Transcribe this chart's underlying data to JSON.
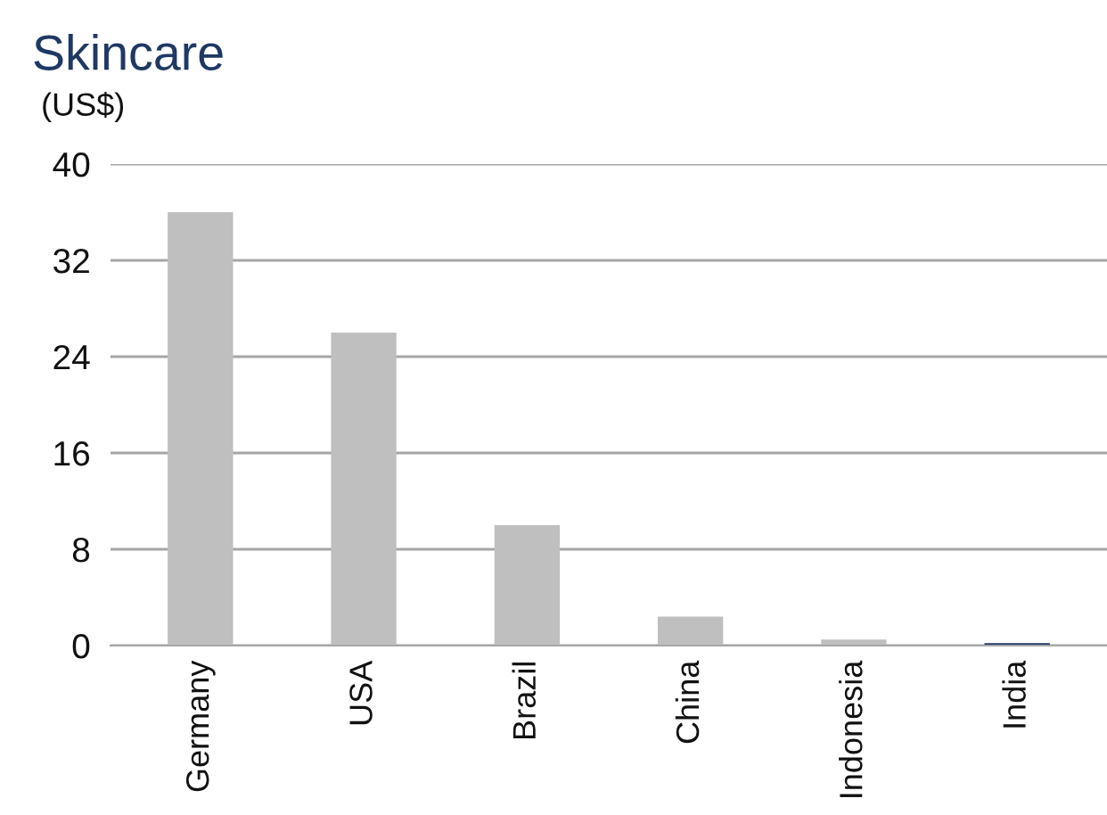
{
  "chart_data": {
    "type": "bar",
    "title": "Skincare",
    "ylabel": "(US$)",
    "categories": [
      "Germany",
      "USA",
      "Brazil",
      "China",
      "Indonesia",
      "India"
    ],
    "values": [
      36,
      26,
      10,
      2.4,
      0.5,
      0.2
    ],
    "colors": [
      "#bfbfbf",
      "#bfbfbf",
      "#bfbfbf",
      "#bfbfbf",
      "#bfbfbf",
      "#1f3864"
    ],
    "ylim": [
      0,
      40
    ],
    "yticks": [
      0,
      8,
      16,
      24,
      32,
      40
    ],
    "grid": "y"
  }
}
